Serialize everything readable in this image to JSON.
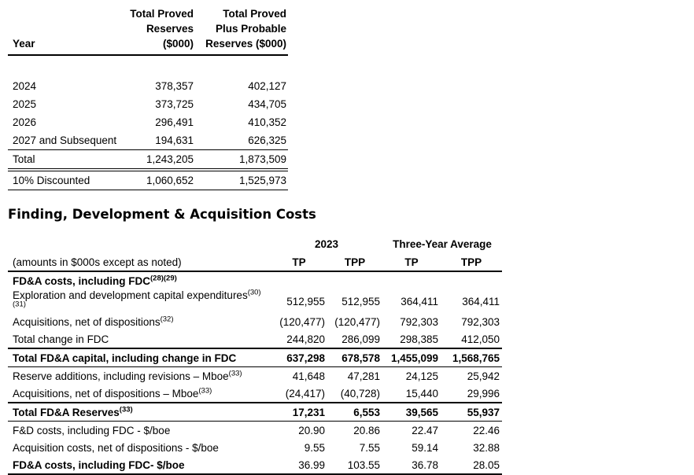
{
  "reserves_table": {
    "header": {
      "year": "Year",
      "tp_line1": "Total Proved",
      "tp_line2": "Reserves",
      "tp_line3": "($000)",
      "tpp_line1": "Total Proved",
      "tpp_line2": "Plus Probable",
      "tpp_line3": "Reserves ($000)"
    },
    "rows": [
      {
        "label": "2024",
        "tp": "378,357",
        "tpp": "402,127"
      },
      {
        "label": "2025",
        "tp": "373,725",
        "tpp": "434,705"
      },
      {
        "label": "2026",
        "tp": "296,491",
        "tpp": "410,352"
      },
      {
        "label": "2027 and Subsequent",
        "tp": "194,631",
        "tpp": "626,325",
        "rule_below": "thin"
      },
      {
        "label": "Total",
        "tp": "1,243,205",
        "tpp": "1,873,509",
        "rule_below": "double"
      },
      {
        "label": "10% Discounted",
        "tp": "1,060,652",
        "tpp": "1,525,973",
        "rule_below": "thin"
      }
    ]
  },
  "fda_section": {
    "title": "Finding, Development & Acquisition Costs",
    "note": "(amounts in $000s except as noted)",
    "group_headers": {
      "y2023": "2023",
      "three_year": "Three-Year Average"
    },
    "sub_headers": [
      "TP",
      "TPP",
      "TP",
      "TPP"
    ],
    "rows": [
      {
        "label": "FD&A costs, including FDC",
        "sup": "(28)(29)",
        "bold_label": true,
        "values": [
          "",
          "",
          "",
          ""
        ]
      },
      {
        "label": "Exploration and development capital expenditures",
        "sup": "(30)(31)",
        "values": [
          "512,955",
          "512,955",
          "364,411",
          "364,411"
        ]
      },
      {
        "label": "Acquisitions, net of dispositions",
        "sup": "(32)",
        "values": [
          "(120,477)",
          "(120,477)",
          "792,303",
          "792,303"
        ]
      },
      {
        "label": "Total change in FDC",
        "values": [
          "244,820",
          "286,099",
          "298,385",
          "412,050"
        ],
        "rule_below": "thick"
      },
      {
        "label": "Total FD&A capital, including change in FDC",
        "bold_label": true,
        "bold_values": true,
        "values": [
          "637,298",
          "678,578",
          "1,455,099",
          "1,568,765"
        ],
        "rule_below": "thin"
      },
      {
        "label": "Reserve additions, including revisions – Mboe",
        "sup": "(33)",
        "values": [
          "41,648",
          "47,281",
          "24,125",
          "25,942"
        ]
      },
      {
        "label": "Acquisitions, net of dispositions – Mboe",
        "sup": "(33)",
        "values": [
          "(24,417)",
          "(40,728)",
          "15,440",
          "29,996"
        ],
        "rule_below": "thick"
      },
      {
        "label": "Total FD&A Reserves",
        "sup": "(33)",
        "bold_label": true,
        "bold_values": true,
        "values": [
          "17,231",
          "6,553",
          "39,565",
          "55,937"
        ],
        "rule_below": "thin"
      },
      {
        "label": "F&D costs, including FDC - $/boe",
        "values": [
          "20.90",
          "20.86",
          "22.47",
          "22.46"
        ]
      },
      {
        "label": "Acquisition costs, net of dispositions - $/boe",
        "values": [
          "9.55",
          "7.55",
          "59.14",
          "32.88"
        ]
      },
      {
        "label": "FD&A costs, including FDC- $/boe",
        "bold_label": true,
        "values": [
          "36.99",
          "103.55",
          "36.78",
          "28.05"
        ],
        "rule_below": "thick"
      }
    ]
  }
}
